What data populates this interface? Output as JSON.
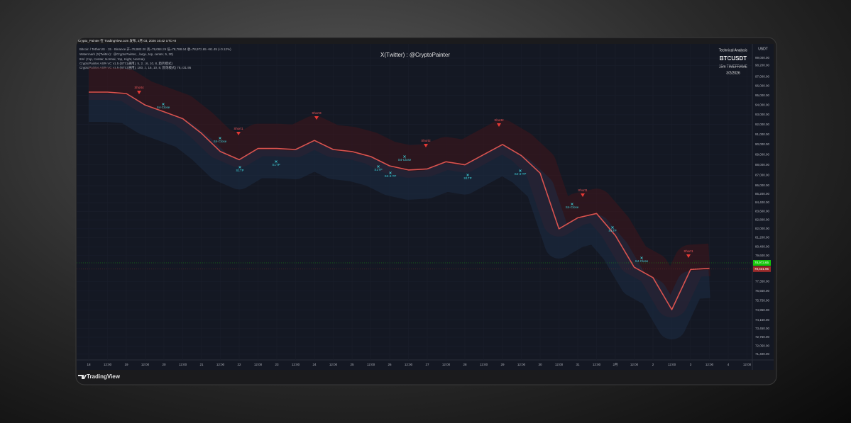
{
  "chart_data": {
    "type": "line",
    "header": [
      "Crypto_Painter 在 TradingView.com 发布, 2月 03, 2026 16:42 UTC+8",
      "Bitcoin / TetherUS · 15 · Binance 开=78,982.20 高=79,084.29 低=78,788.64 收=78,973.65 +91.45 (+0.12%)",
      "Watermark (X(Twitter) : @CryptoPainter, , large, top, center, 5, 30)",
      "ttm² (Top, Center, Normal, Top, Right, Normal)",
      "CryptoPainter ASR-VC v1.5 (BTC(通用), 5, 2, 16, 10, 8, 趋势模式)",
      "CryptoPainter ASR-VC v1.5 (BTC(通用), 100, 2, 16, 10, 8, 震荡模式) 78,431.95"
    ],
    "watermark": "X(Twitter) : @CryptoPainter",
    "info": [
      "Technical Analysis",
      "BTCUSDT",
      "15m TIMEFRAME",
      "3/2/2026"
    ],
    "currency": "USDT",
    "footer": "TradingView",
    "log_scale": true,
    "color": "#d9534f",
    "categories": [
      "18",
      "12:00",
      "19",
      "12:00",
      "20",
      "12:00",
      "21",
      "12:00",
      "22",
      "12:00",
      "23",
      "12:00",
      "24",
      "12:00",
      "25",
      "12:00",
      "26",
      "12:00",
      "27",
      "12:00",
      "28",
      "12:00",
      "29",
      "12:00",
      "30",
      "12:00",
      "31",
      "12:00",
      "2月",
      "12:00",
      "2",
      "12:00",
      "3",
      "12:00",
      "4",
      "12:00"
    ],
    "values": [
      95350,
      95350,
      95200,
      94000,
      93300,
      92600,
      91100,
      89300,
      88500,
      89600,
      89600,
      89500,
      90400,
      89500,
      89300,
      88800,
      87900,
      87500,
      87600,
      88300,
      88000,
      89000,
      90000,
      88900,
      87200,
      82000,
      83000,
      83400,
      81400,
      78600,
      77700,
      75000,
      78400,
      78500,
      null,
      null
    ],
    "ylim": [
      70950,
      100560
    ],
    "yticks": [
      {
        "value": 99000,
        "label": "99,000.00"
      },
      {
        "value": 98200,
        "label": "98,200.00"
      },
      {
        "value": 97000,
        "label": "97,000.00"
      },
      {
        "value": 96000,
        "label": "96,000.00"
      },
      {
        "value": 95000,
        "label": "95,000.00"
      },
      {
        "value": 94000,
        "label": "94,000.00"
      },
      {
        "value": 93000,
        "label": "93,000.00"
      },
      {
        "value": 92000,
        "label": "92,000.00"
      },
      {
        "value": 91000,
        "label": "91,000.00"
      },
      {
        "value": 90000,
        "label": "90,000.00"
      },
      {
        "value": 89000,
        "label": "89,000.00"
      },
      {
        "value": 88000,
        "label": "88,000.00"
      },
      {
        "value": 87000,
        "label": "87,000.00"
      },
      {
        "value": 86000,
        "label": "86,000.00"
      },
      {
        "value": 85200,
        "label": "85,200.00"
      },
      {
        "value": 84400,
        "label": "84,400.00"
      },
      {
        "value": 83600,
        "label": "83,600.00"
      },
      {
        "value": 82800,
        "label": "82,800.00"
      },
      {
        "value": 82000,
        "label": "82,000.00"
      },
      {
        "value": 81200,
        "label": "81,200.00"
      },
      {
        "value": 80400,
        "label": "80,400.00"
      },
      {
        "value": 79600,
        "label": "79,600.00"
      },
      {
        "value": 77350,
        "label": "77,350.00"
      },
      {
        "value": 76550,
        "label": "76,550.00"
      },
      {
        "value": 75750,
        "label": "75,750.00"
      },
      {
        "value": 74950,
        "label": "74,950.00"
      },
      {
        "value": 74150,
        "label": "74,150.00"
      },
      {
        "value": 73450,
        "label": "73,450.00"
      },
      {
        "value": 72750,
        "label": "72,750.00"
      },
      {
        "value": 72050,
        "label": "72,050.00"
      },
      {
        "value": 71400,
        "label": "71,400.00"
      }
    ],
    "price_tags": [
      {
        "value": 78973.65,
        "label": "78,973.65",
        "color": "#16c60c"
      },
      {
        "value": 78431.95,
        "label": "78,431.95",
        "color": "#9c2b2b"
      }
    ],
    "annotations": [
      "Short4",
      "S4-Close",
      "Short1",
      "S1TP",
      "S4-Close",
      "S1TP",
      "Short3",
      "Short2",
      "S1TP",
      "S2-3-TP",
      "S4-Close",
      "S1TP",
      "Short2",
      "S2-3-TP",
      "Short1",
      "S4-Close",
      "S1TP",
      "S4-Close",
      "Short1"
    ]
  }
}
